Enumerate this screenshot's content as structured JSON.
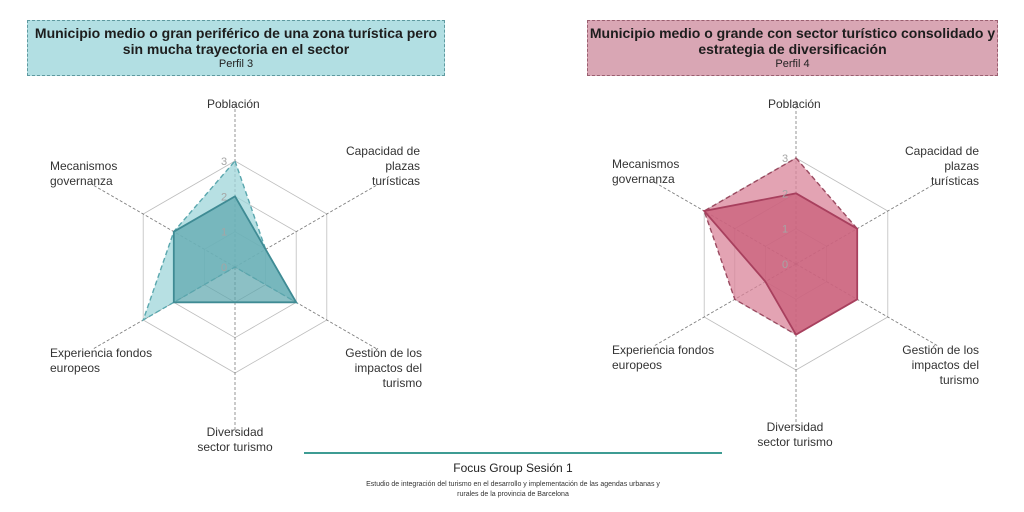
{
  "chart_data": [
    {
      "type": "radar",
      "title": "Municipio medio o gran periférico de una zona turística pero sin mucha trayectoria en el sector",
      "subtitle": "Perfil 3",
      "axes": [
        "Población",
        "Capacidad de plazas turísticas",
        "Gestión de los impactos del turismo",
        "Diversidad sector turismo",
        "Experiencia fondos europeos",
        "Mecanismos governanza"
      ],
      "ticks": [
        "0",
        "1",
        "2",
        "3"
      ],
      "range": [
        0,
        3
      ],
      "series": [
        {
          "values": [
            3,
            1,
            2,
            0,
            3,
            2
          ]
        },
        {
          "values": [
            2,
            1,
            2,
            1,
            2,
            2
          ]
        }
      ],
      "colors": [
        "#9fd5da",
        "#5ba5ad"
      ]
    },
    {
      "type": "radar",
      "title": "Municipio medio o grande con sector turístico consolidado y estrategia de diversificación",
      "subtitle": "Perfil 4",
      "axes": [
        "Población",
        "Capacidad de plazas turísticas",
        "Gestión de los impactos del turismo",
        "Diversidad sector turismo",
        "Experiencia fondos europeos",
        "Mecanismos governanza"
      ],
      "ticks": [
        "0",
        "1",
        "2",
        "3"
      ],
      "range": [
        0,
        3
      ],
      "series": [
        {
          "values": [
            3,
            2,
            2,
            2,
            2,
            3
          ]
        },
        {
          "values": [
            2,
            2,
            2,
            2,
            1,
            3
          ]
        }
      ],
      "colors": [
        "#d9849a",
        "#c85a76"
      ]
    }
  ],
  "footer": {
    "title": "Focus Group Sesión 1",
    "subtitle_line1": "Estudio de integración del turismo en el desarrollo y implementación de las agendas urbanas y",
    "subtitle_line2": "rurales de la provincia de Barcelona"
  }
}
